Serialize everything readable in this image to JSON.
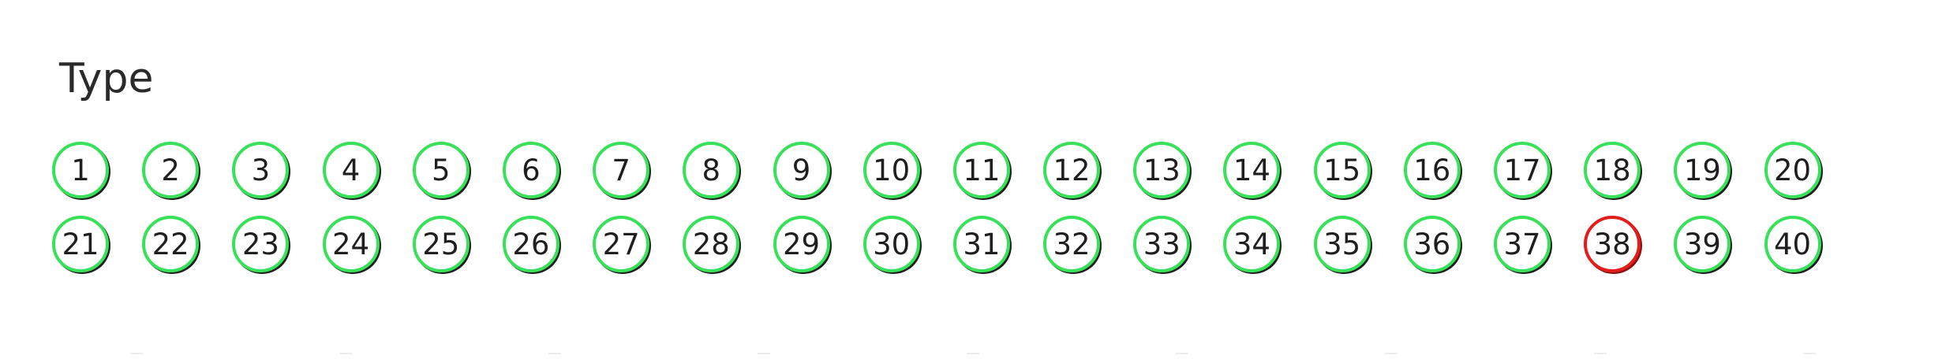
{
  "title": "Type",
  "items": [
    {
      "label": "1",
      "state": "green"
    },
    {
      "label": "2",
      "state": "green"
    },
    {
      "label": "3",
      "state": "green"
    },
    {
      "label": "4",
      "state": "green"
    },
    {
      "label": "5",
      "state": "green"
    },
    {
      "label": "6",
      "state": "green"
    },
    {
      "label": "7",
      "state": "green"
    },
    {
      "label": "8",
      "state": "green"
    },
    {
      "label": "9",
      "state": "green"
    },
    {
      "label": "10",
      "state": "green"
    },
    {
      "label": "11",
      "state": "green"
    },
    {
      "label": "12",
      "state": "green"
    },
    {
      "label": "13",
      "state": "green"
    },
    {
      "label": "14",
      "state": "green"
    },
    {
      "label": "15",
      "state": "green"
    },
    {
      "label": "16",
      "state": "green"
    },
    {
      "label": "17",
      "state": "green"
    },
    {
      "label": "18",
      "state": "green"
    },
    {
      "label": "19",
      "state": "green"
    },
    {
      "label": "20",
      "state": "green"
    },
    {
      "label": "21",
      "state": "green"
    },
    {
      "label": "22",
      "state": "green"
    },
    {
      "label": "23",
      "state": "green"
    },
    {
      "label": "24",
      "state": "green"
    },
    {
      "label": "25",
      "state": "green"
    },
    {
      "label": "26",
      "state": "green"
    },
    {
      "label": "27",
      "state": "green"
    },
    {
      "label": "28",
      "state": "green"
    },
    {
      "label": "29",
      "state": "green"
    },
    {
      "label": "30",
      "state": "green"
    },
    {
      "label": "31",
      "state": "green"
    },
    {
      "label": "32",
      "state": "green"
    },
    {
      "label": "33",
      "state": "green"
    },
    {
      "label": "34",
      "state": "green"
    },
    {
      "label": "35",
      "state": "green"
    },
    {
      "label": "36",
      "state": "green"
    },
    {
      "label": "37",
      "state": "green"
    },
    {
      "label": "38",
      "state": "red"
    },
    {
      "label": "39",
      "state": "green"
    },
    {
      "label": "40",
      "state": "green"
    }
  ],
  "colors": {
    "green": "#39e05a",
    "red": "#e31c1c",
    "text": "#1f1f1f"
  }
}
